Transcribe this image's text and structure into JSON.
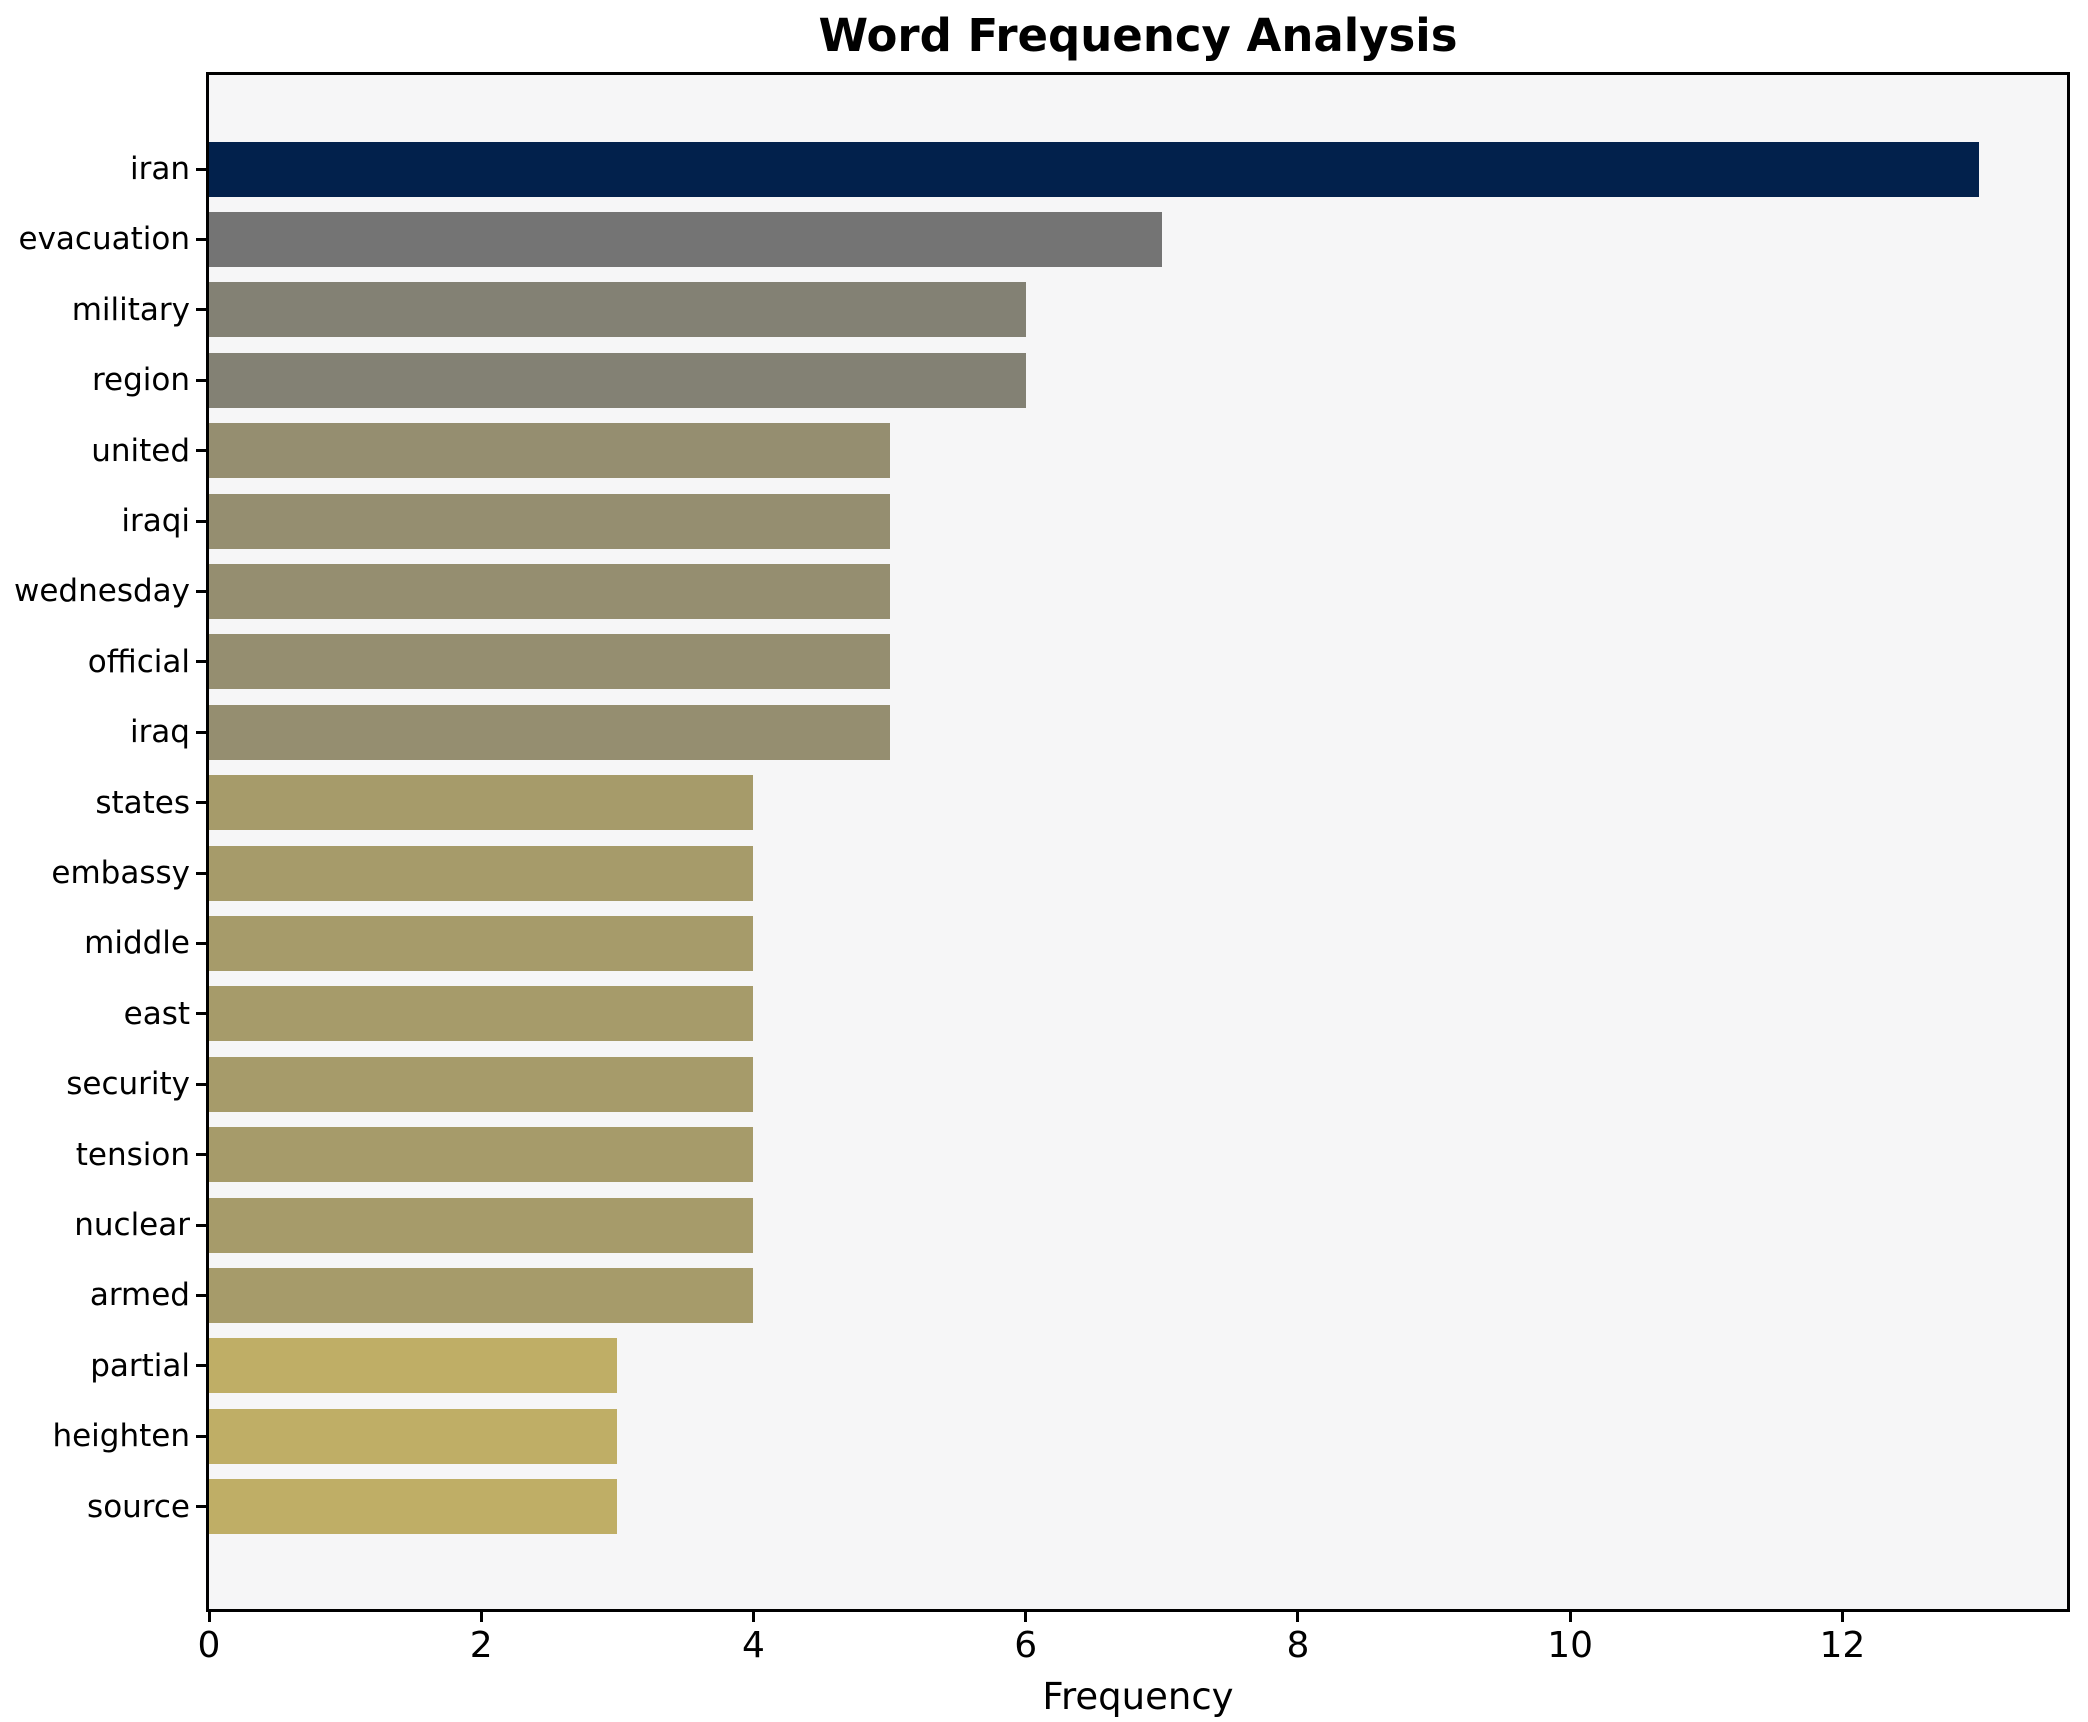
{
  "chart_data": {
    "type": "bar",
    "orientation": "horizontal",
    "title": "Word Frequency Analysis",
    "xlabel": "Frequency",
    "ylabel": "",
    "categories": [
      "iran",
      "evacuation",
      "military",
      "region",
      "united",
      "iraqi",
      "wednesday",
      "official",
      "iraq",
      "states",
      "embassy",
      "middle",
      "east",
      "security",
      "tension",
      "nuclear",
      "armed",
      "partial",
      "heighten",
      "source"
    ],
    "values": [
      13,
      7,
      6,
      6,
      5,
      5,
      5,
      5,
      5,
      4,
      4,
      4,
      4,
      4,
      4,
      4,
      4,
      3,
      3,
      3
    ],
    "bar_colors": [
      "#02214c",
      "#747474",
      "#838174",
      "#838174",
      "#958e70",
      "#958e70",
      "#958e70",
      "#958e70",
      "#958e70",
      "#a69b6a",
      "#a69b6a",
      "#a69b6a",
      "#a69b6a",
      "#a69b6a",
      "#a69b6a",
      "#a69b6a",
      "#a69b6a",
      "#bfae66",
      "#bfae66",
      "#bfae66"
    ],
    "xticks": [
      0,
      2,
      4,
      6,
      8,
      10,
      12
    ],
    "xlim": [
      0,
      13.65
    ],
    "grid": false,
    "legend_visible": false,
    "plot_background": "#f6f6f7",
    "figure_background": "#ffffff",
    "axis_color": "#000000"
  }
}
